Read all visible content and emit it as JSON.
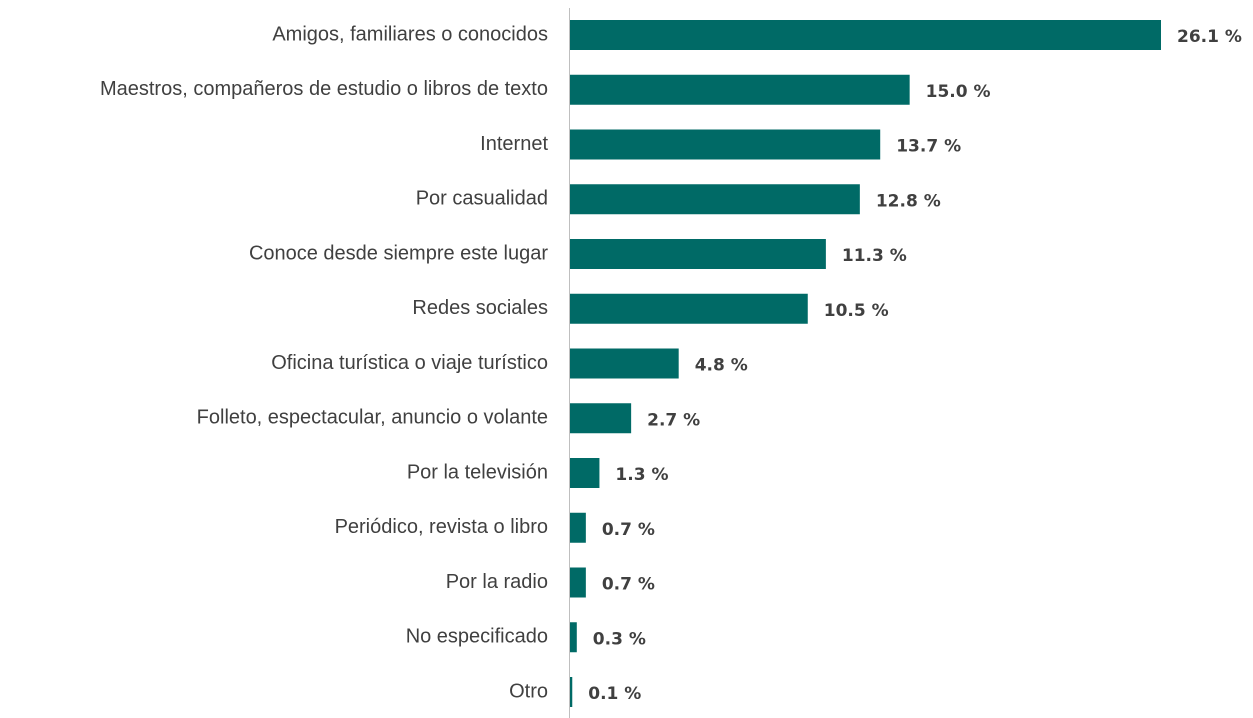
{
  "chart_data": {
    "type": "bar",
    "orientation": "horizontal",
    "categories": [
      "Amigos, familiares o conocidos",
      "Maestros, compañeros de estudio o libros de texto",
      "Internet",
      "Por casualidad",
      "Conoce desde siempre este lugar",
      "Redes sociales",
      "Oficina turística o viaje turístico",
      "Folleto, espectacular, anuncio o volante",
      "Por la televisión",
      "Periódico, revista o libro",
      "Por la radio",
      "No especificado",
      "Otro"
    ],
    "values": [
      26.1,
      15.0,
      13.7,
      12.8,
      11.3,
      10.5,
      4.8,
      2.7,
      1.3,
      0.7,
      0.7,
      0.3,
      0.1
    ],
    "value_labels": [
      "26.1 %",
      "15.0 %",
      "13.7 %",
      "12.8 %",
      "11.3 %",
      "10.5 %",
      "4.8 %",
      "2.7 %",
      "1.3 %",
      "0.7 %",
      "0.7 %",
      "0.3 %",
      "0.1 %"
    ],
    "color": "#006a66"
  }
}
